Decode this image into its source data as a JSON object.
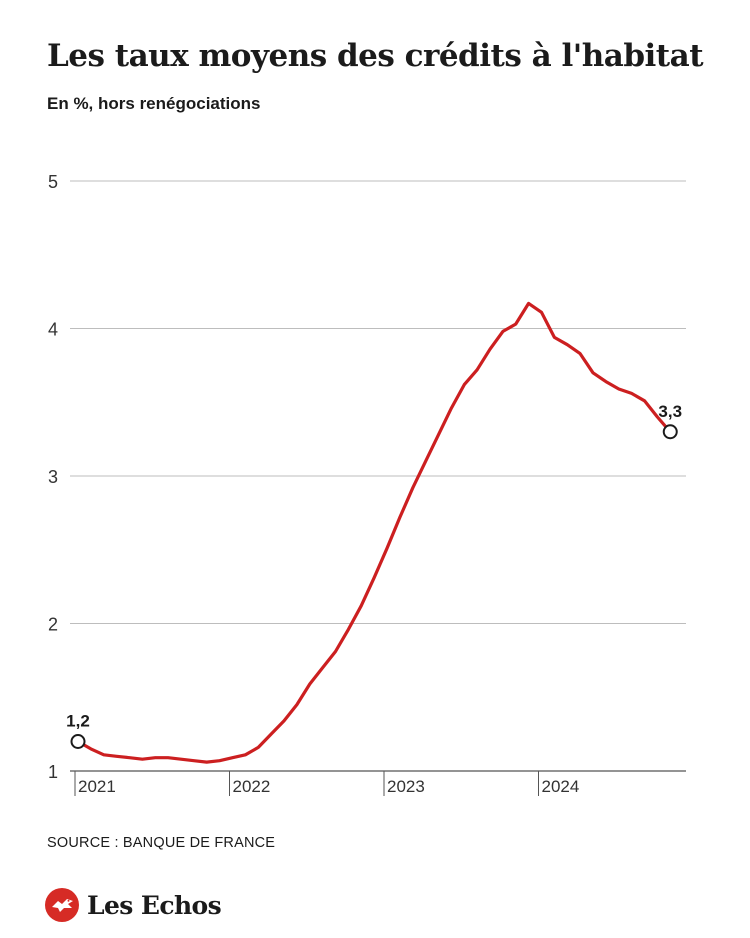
{
  "header": {
    "title": "Les taux moyens des crédits à l'habitat",
    "subtitle": "En %, hors renégociations"
  },
  "chart_data": {
    "type": "line",
    "title": "Les taux moyens des crédits à l'habitat",
    "subtitle": "En %, hors renégociations",
    "xlabel": "",
    "ylabel": "",
    "ylim": [
      1,
      5
    ],
    "xlim": [
      "2021-01",
      "2025-01"
    ],
    "yticks": [
      1,
      2,
      3,
      4,
      5
    ],
    "xticks": [
      "2021",
      "2022",
      "2023",
      "2024"
    ],
    "grid": true,
    "line_color": "#cc1f20",
    "series": [
      {
        "x": [
          "2021-01",
          "2021-02",
          "2021-03",
          "2021-04",
          "2021-05",
          "2021-06",
          "2021-07",
          "2021-08",
          "2021-09",
          "2021-10",
          "2021-11",
          "2021-12",
          "2022-01",
          "2022-02",
          "2022-03",
          "2022-04",
          "2022-05",
          "2022-06",
          "2022-07",
          "2022-08",
          "2022-09",
          "2022-10",
          "2022-11",
          "2022-12",
          "2023-01",
          "2023-02",
          "2023-03",
          "2023-04",
          "2023-05",
          "2023-06",
          "2023-07",
          "2023-08",
          "2023-09",
          "2023-10",
          "2023-11",
          "2023-12",
          "2024-01",
          "2024-02",
          "2024-03",
          "2024-04",
          "2024-05",
          "2024-06",
          "2024-07",
          "2024-08",
          "2024-09",
          "2024-10",
          "2024-11"
        ],
        "values": [
          1.2,
          1.15,
          1.11,
          1.1,
          1.09,
          1.08,
          1.09,
          1.09,
          1.08,
          1.07,
          1.06,
          1.07,
          1.09,
          1.11,
          1.16,
          1.25,
          1.34,
          1.45,
          1.59,
          1.7,
          1.81,
          1.96,
          2.12,
          2.31,
          2.51,
          2.72,
          2.92,
          3.1,
          3.28,
          3.46,
          3.62,
          3.72,
          3.86,
          3.98,
          4.03,
          4.17,
          4.11,
          3.94,
          3.89,
          3.83,
          3.7,
          3.64,
          3.59,
          3.56,
          3.51,
          3.4,
          3.3
        ]
      }
    ],
    "annotations": [
      {
        "x": "2021-01",
        "y": 1.2,
        "label": "1,2"
      },
      {
        "x": "2024-11",
        "y": 3.3,
        "label": "3,3"
      }
    ]
  },
  "footer": {
    "source": "SOURCE : BANQUE DE FRANCE",
    "brand": "Les Echos",
    "brand_color": "#d62b25"
  }
}
